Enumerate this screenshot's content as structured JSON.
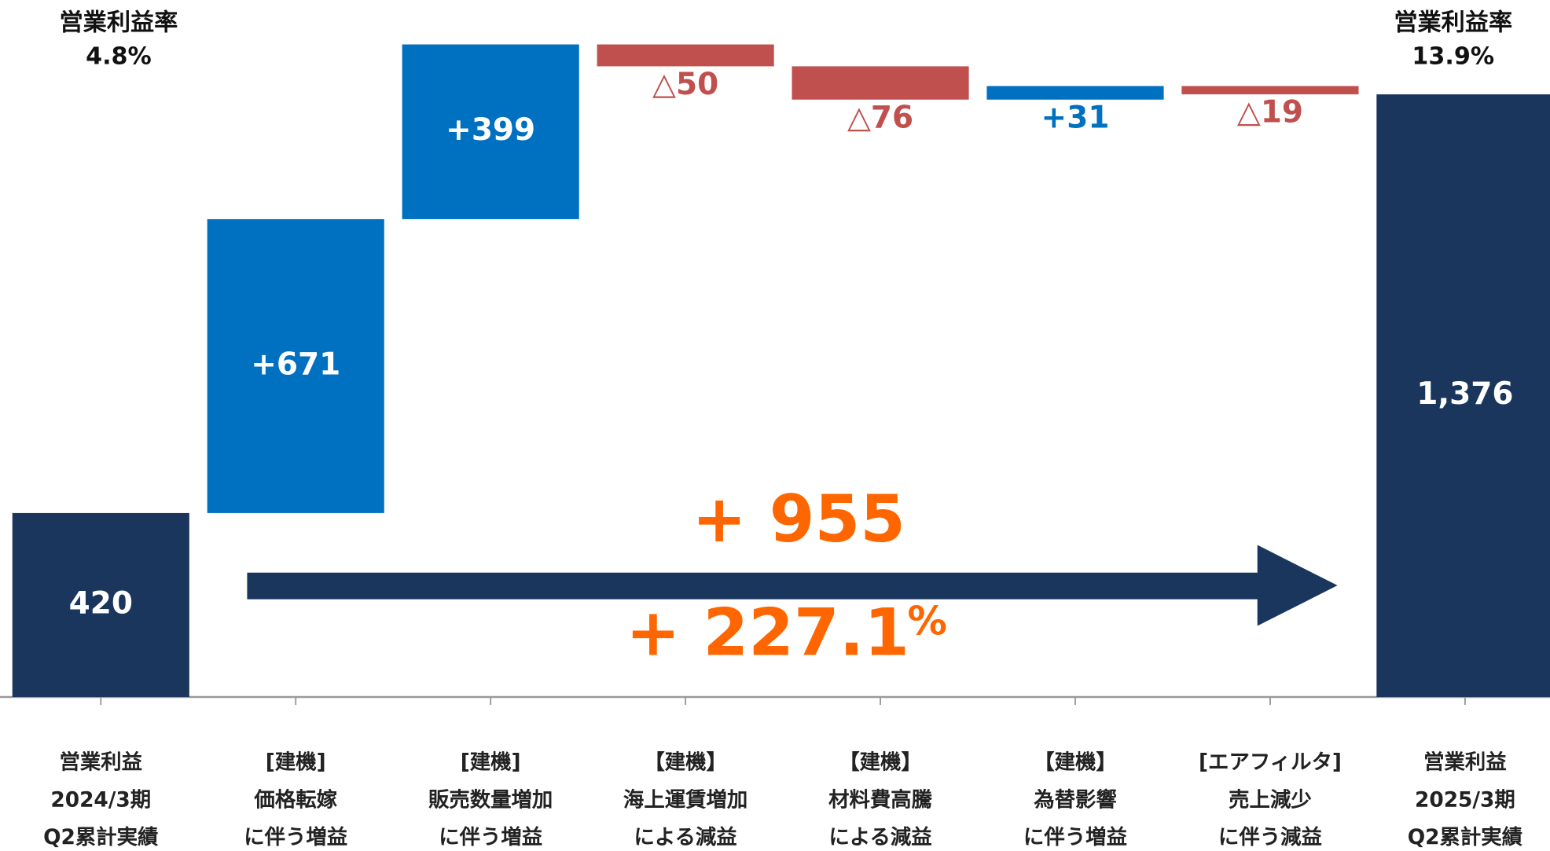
{
  "chart_data": {
    "type": "waterfall",
    "categories": [
      [
        "営業利益",
        "2024/3期",
        "Q2累計実績"
      ],
      [
        "[建機]",
        "価格転嫁",
        "に伴う増益"
      ],
      [
        "[建機]",
        "販売数量増加",
        "に伴う増益"
      ],
      [
        "【建機】",
        "海上運賃増加",
        "による減益"
      ],
      [
        "【建機】",
        "材料費高騰",
        "による減益"
      ],
      [
        "【建機】",
        "為替影響",
        "に伴う増益"
      ],
      [
        "[エアフィルタ]",
        "売上減少",
        "に伴う減益"
      ],
      [
        "営業利益",
        "2025/3期",
        "Q2累計実績"
      ]
    ],
    "values": [
      420,
      671,
      399,
      -50,
      -76,
      31,
      -19,
      1376
    ],
    "value_labels": [
      "420",
      "+671",
      "+399",
      "△50",
      "△76",
      "+31",
      "△19",
      "1,376"
    ],
    "totals": [
      0,
      7
    ],
    "colors": {
      "total": "#1b365d",
      "increase": "#0070c0",
      "decrease": "#c0504d"
    },
    "annotations": {
      "left_margin": [
        "営業利益率",
        "4.8%"
      ],
      "right_margin": [
        "営業利益率",
        "13.9%"
      ],
      "change": "+ 955",
      "change_rate": "+ 227.1",
      "change_rate_unit": "%",
      "color": "#ff6600",
      "arrow_color": "#1b365d"
    }
  }
}
